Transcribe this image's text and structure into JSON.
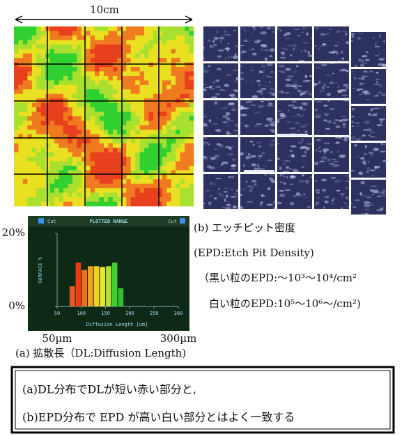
{
  "top_label": "10cm",
  "chart_data": {
    "type": "histogram",
    "title": "PLOTTED RANGE",
    "cut_labels": [
      "Cut",
      "Cut"
    ],
    "x_label": "Diffusion Length [um]",
    "y_label": "SURFACE %",
    "bins": [
      75,
      87.5,
      100,
      112.5,
      125,
      137.5,
      150,
      162.5,
      175,
      187.5
    ],
    "values": [
      5.5,
      12,
      10,
      11,
      11,
      10.8,
      11,
      12,
      5
    ],
    "colors": [
      "#e85a20",
      "#f03a10",
      "#f07020",
      "#f0a020",
      "#f0d020",
      "#e8e830",
      "#b8e030",
      "#40d030",
      "#30c030"
    ],
    "xlim": [
      50,
      300
    ],
    "xticks": [
      50,
      100,
      150,
      200,
      250,
      300
    ],
    "ylim": [
      0,
      20
    ],
    "yticks": [
      {
        "value": 0,
        "label": "0%"
      },
      {
        "value": 20,
        "label": "20%"
      }
    ],
    "range_labels": [
      {
        "value": 50,
        "label": "50µm"
      },
      {
        "value": 300,
        "label": "300µm"
      }
    ]
  },
  "caption_a": "(a) 拡散長（DL:Diffusion Length)",
  "caption_b": [
    "(b) エッチピット密度",
    "(EPD:Etch Pit Density)",
    "（黒い粒のEPD:～10³～10⁴/cm²",
    "白い粒のEPD:10⁵～10⁶～/cm²)"
  ],
  "conclusion": [
    "(a)DL分布でDLが短い赤い部分と,",
    "(b)EPD分布で EPD が高い白い部分とはよく一致する"
  ]
}
